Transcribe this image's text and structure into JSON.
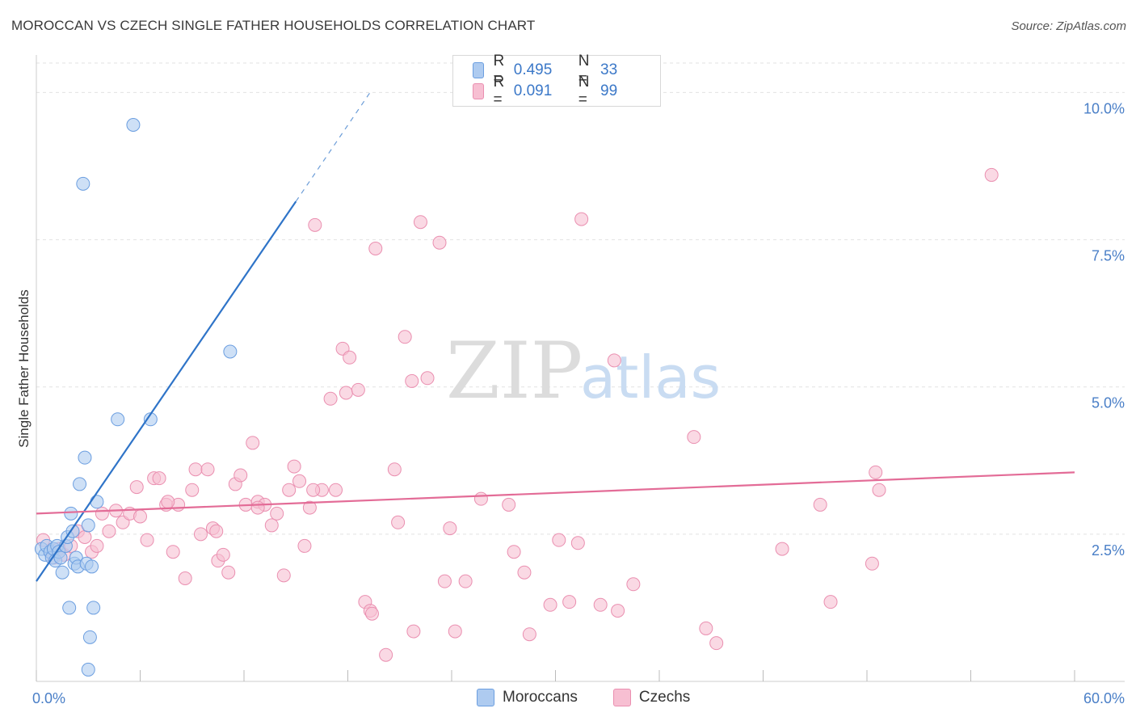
{
  "header": {
    "title": "MOROCCAN VS CZECH SINGLE FATHER HOUSEHOLDS CORRELATION CHART",
    "source": "Source: ZipAtlas.com"
  },
  "legend_top": {
    "rows": [
      {
        "r_label": "R =",
        "r_value": "0.495",
        "n_label": "N =",
        "n_value": "33"
      },
      {
        "r_label": "R =",
        "r_value": "0.091",
        "n_label": "N =",
        "n_value": "99"
      }
    ]
  },
  "legend_bottom": {
    "items": [
      "Moroccans",
      "Czechs"
    ]
  },
  "colors": {
    "blue_fill": "#aecbf0",
    "blue_stroke": "#6b9ee0",
    "blue_line": "#2f74c8",
    "pink_fill": "#f7bfd2",
    "pink_stroke": "#ea8fb0",
    "pink_line": "#e36c97",
    "tick": "#4a7fc7"
  },
  "watermark": {
    "zip": "ZIP",
    "atlas": "atlas"
  },
  "chart_data": {
    "type": "scatter",
    "title": "MOROCCAN VS CZECH SINGLE FATHER HOUSEHOLDS CORRELATION CHART",
    "xlabel": "",
    "ylabel": "Single Father Households",
    "xlim": [
      0,
      60
    ],
    "ylim": [
      0,
      10.5
    ],
    "x_tick_labels": [
      "0.0%",
      "60.0%"
    ],
    "y_ticks": [
      2.5,
      5.0,
      7.5,
      10.0
    ],
    "y_tick_labels": [
      "2.5%",
      "5.0%",
      "7.5%",
      "10.0%"
    ],
    "grid": true,
    "series": [
      {
        "name": "Moroccans",
        "r": 0.495,
        "n": 33,
        "trend": {
          "x0": 0,
          "y0": 1.7,
          "x1": 15.0,
          "y1": 8.15,
          "dash_to_x": 19.4,
          "dash_to_y": 10.05
        },
        "points": [
          [
            0.3,
            2.25
          ],
          [
            0.5,
            2.15
          ],
          [
            0.6,
            2.3
          ],
          [
            0.8,
            2.2
          ],
          [
            0.9,
            2.1
          ],
          [
            1.0,
            2.25
          ],
          [
            1.1,
            2.05
          ],
          [
            1.2,
            2.3
          ],
          [
            1.3,
            2.2
          ],
          [
            1.4,
            2.1
          ],
          [
            1.5,
            1.85
          ],
          [
            1.7,
            2.3
          ],
          [
            1.8,
            2.45
          ],
          [
            1.9,
            1.25
          ],
          [
            2.0,
            2.85
          ],
          [
            2.1,
            2.55
          ],
          [
            2.2,
            2.0
          ],
          [
            2.3,
            2.1
          ],
          [
            2.4,
            1.95
          ],
          [
            2.5,
            3.35
          ],
          [
            2.7,
            8.45
          ],
          [
            2.8,
            3.8
          ],
          [
            2.9,
            2.0
          ],
          [
            3.0,
            2.65
          ],
          [
            3.1,
            0.75
          ],
          [
            3.2,
            1.95
          ],
          [
            3.3,
            1.25
          ],
          [
            3.5,
            3.05
          ],
          [
            3.0,
            0.2
          ],
          [
            4.7,
            4.45
          ],
          [
            5.6,
            9.45
          ],
          [
            6.6,
            4.45
          ],
          [
            11.2,
            5.6
          ]
        ]
      },
      {
        "name": "Czechs",
        "r": 0.091,
        "n": 99,
        "trend": {
          "x0": 0,
          "y0": 2.85,
          "x1": 60,
          "y1": 3.55
        },
        "points": [
          [
            0.4,
            2.4
          ],
          [
            0.8,
            2.2
          ],
          [
            1.0,
            2.1
          ],
          [
            1.3,
            2.25
          ],
          [
            1.6,
            2.15
          ],
          [
            2.0,
            2.3
          ],
          [
            2.4,
            2.55
          ],
          [
            2.8,
            2.45
          ],
          [
            3.2,
            2.2
          ],
          [
            3.5,
            2.3
          ],
          [
            3.8,
            2.85
          ],
          [
            4.2,
            2.55
          ],
          [
            4.6,
            2.9
          ],
          [
            5.0,
            2.7
          ],
          [
            5.4,
            2.85
          ],
          [
            5.8,
            3.3
          ],
          [
            6.0,
            2.8
          ],
          [
            6.4,
            2.4
          ],
          [
            6.8,
            3.45
          ],
          [
            7.1,
            3.45
          ],
          [
            7.5,
            3.0
          ],
          [
            7.9,
            2.2
          ],
          [
            8.2,
            3.0
          ],
          [
            8.6,
            1.75
          ],
          [
            9.0,
            3.25
          ],
          [
            9.2,
            3.6
          ],
          [
            9.5,
            2.5
          ],
          [
            9.9,
            3.6
          ],
          [
            10.2,
            2.6
          ],
          [
            10.5,
            2.05
          ],
          [
            10.8,
            2.15
          ],
          [
            11.1,
            1.85
          ],
          [
            11.5,
            3.35
          ],
          [
            11.8,
            3.5
          ],
          [
            12.1,
            3.0
          ],
          [
            12.5,
            4.05
          ],
          [
            12.8,
            3.05
          ],
          [
            13.2,
            3.0
          ],
          [
            13.6,
            2.65
          ],
          [
            13.9,
            2.85
          ],
          [
            14.3,
            1.8
          ],
          [
            14.6,
            3.25
          ],
          [
            14.9,
            3.65
          ],
          [
            15.2,
            3.4
          ],
          [
            15.5,
            2.3
          ],
          [
            15.8,
            2.95
          ],
          [
            16.1,
            7.75
          ],
          [
            16.5,
            3.25
          ],
          [
            17.0,
            4.8
          ],
          [
            17.3,
            3.25
          ],
          [
            17.7,
            5.65
          ],
          [
            17.9,
            4.9
          ],
          [
            18.1,
            5.5
          ],
          [
            18.6,
            4.95
          ],
          [
            19.0,
            1.35
          ],
          [
            19.3,
            1.2
          ],
          [
            19.6,
            7.35
          ],
          [
            20.2,
            0.45
          ],
          [
            20.7,
            3.6
          ],
          [
            20.9,
            2.7
          ],
          [
            21.3,
            5.85
          ],
          [
            21.7,
            5.1
          ],
          [
            22.2,
            7.8
          ],
          [
            22.6,
            5.15
          ],
          [
            23.3,
            7.45
          ],
          [
            23.9,
            2.6
          ],
          [
            23.6,
            1.7
          ],
          [
            24.2,
            0.85
          ],
          [
            24.8,
            1.7
          ],
          [
            25.7,
            3.1
          ],
          [
            27.3,
            3.0
          ],
          [
            27.6,
            2.2
          ],
          [
            28.2,
            1.85
          ],
          [
            28.5,
            0.8
          ],
          [
            29.7,
            1.3
          ],
          [
            30.2,
            2.4
          ],
          [
            30.8,
            1.35
          ],
          [
            31.3,
            2.35
          ],
          [
            31.5,
            7.85
          ],
          [
            32.6,
            1.3
          ],
          [
            33.4,
            5.45
          ],
          [
            33.6,
            1.2
          ],
          [
            34.5,
            1.65
          ],
          [
            38.0,
            4.15
          ],
          [
            38.7,
            0.9
          ],
          [
            39.3,
            0.65
          ],
          [
            43.1,
            2.25
          ],
          [
            45.3,
            3.0
          ],
          [
            45.9,
            1.35
          ],
          [
            48.3,
            2.0
          ],
          [
            48.5,
            3.55
          ],
          [
            48.7,
            3.25
          ],
          [
            55.2,
            8.6
          ],
          [
            21.8,
            0.85
          ],
          [
            19.4,
            1.15
          ],
          [
            16.0,
            3.25
          ],
          [
            10.4,
            2.55
          ],
          [
            7.6,
            3.05
          ],
          [
            12.8,
            2.95
          ]
        ]
      }
    ]
  }
}
